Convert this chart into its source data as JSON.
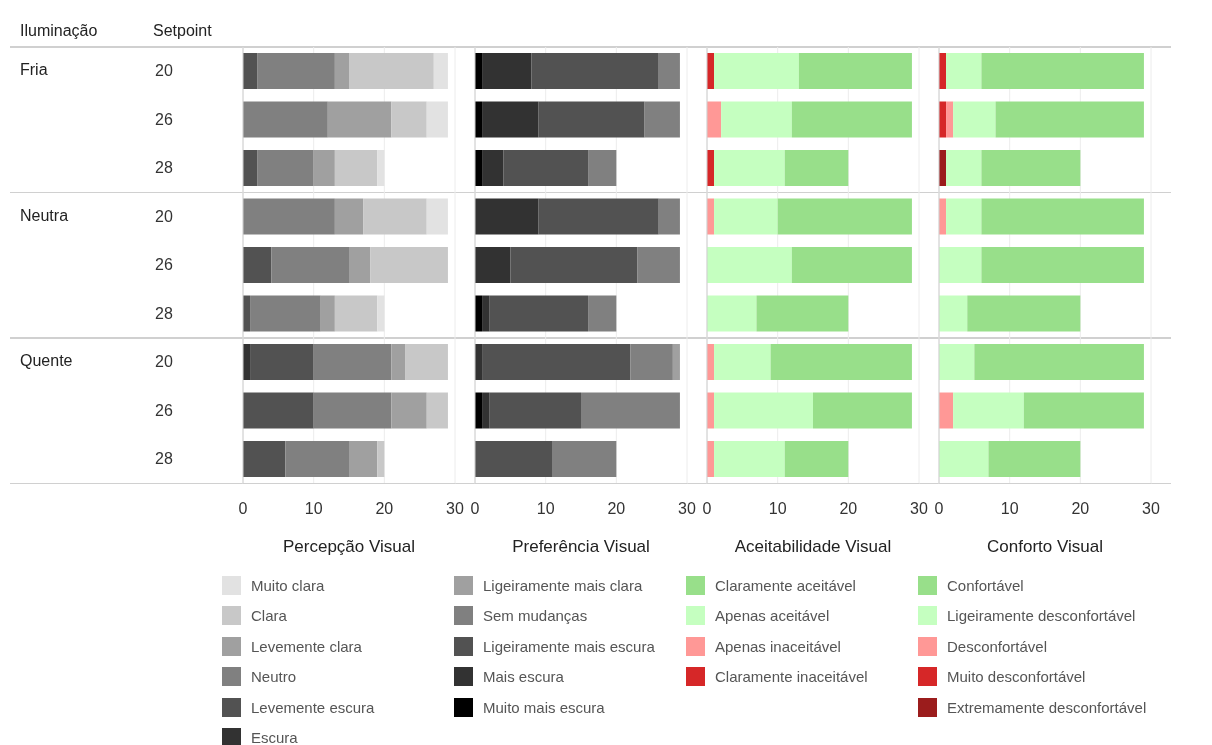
{
  "chart_data": [
    {
      "type": "bar",
      "orientation": "horizontal",
      "stacked": true,
      "xlabel": "Percepção Visual",
      "categories": [
        "20",
        "26",
        "28",
        "20",
        "26",
        "28",
        "20",
        "26",
        "28"
      ],
      "xlim": [
        0,
        30
      ],
      "xticks": [
        0,
        10,
        20,
        30
      ],
      "grid": "x",
      "legend": "bottom",
      "annotations": [
        "Iluminação",
        "Setpoint",
        "Fria",
        "Neutra",
        "Quente"
      ],
      "series": [
        {
          "name": "Escura",
          "color": "#323232",
          "values": [
            null,
            null,
            null,
            null,
            null,
            null,
            1,
            null,
            null
          ]
        },
        {
          "name": "Levemente escura",
          "color": "#525252",
          "values": [
            2,
            null,
            2,
            null,
            4,
            1,
            9,
            10,
            6
          ]
        },
        {
          "name": "Neutro",
          "color": "#808080",
          "values": [
            11,
            12,
            8,
            13,
            11,
            10,
            11,
            11,
            9
          ]
        },
        {
          "name": "Levemente clara",
          "color": "#a0a0a0",
          "values": [
            2,
            9,
            3,
            4,
            3,
            2,
            2,
            5,
            4
          ]
        },
        {
          "name": "Clara",
          "color": "#c8c8c8",
          "values": [
            12,
            5,
            6,
            9,
            11,
            6,
            6,
            3,
            1
          ]
        },
        {
          "name": "Muito clara",
          "color": "#e2e2e2",
          "values": [
            2,
            3,
            1,
            3,
            null,
            1,
            null,
            null,
            null
          ]
        }
      ]
    },
    {
      "type": "bar",
      "orientation": "horizontal",
      "stacked": true,
      "xlabel": "Preferência Visual",
      "categories": [
        "20",
        "26",
        "28",
        "20",
        "26",
        "28",
        "20",
        "26",
        "28"
      ],
      "xlim": [
        0,
        30
      ],
      "xticks": [
        0,
        10,
        20,
        30
      ],
      "grid": "x",
      "legend": "bottom",
      "tick_labels": "x",
      "series": [
        {
          "name": "Muito mais escura",
          "color": "#000000",
          "values": [
            1,
            1,
            1,
            null,
            null,
            1,
            null,
            1,
            null
          ]
        },
        {
          "name": "Mais escura",
          "color": "#323232",
          "values": [
            7,
            8,
            3,
            9,
            5,
            1,
            1,
            1,
            null
          ]
        },
        {
          "name": "Ligeiramente mais escura",
          "color": "#525252",
          "values": [
            18,
            15,
            12,
            17,
            18,
            14,
            21,
            13,
            11
          ]
        },
        {
          "name": "Sem mudanças",
          "color": "#808080",
          "values": [
            3,
            5,
            4,
            3,
            6,
            4,
            6,
            14,
            9
          ]
        },
        {
          "name": "Ligeiramente mais clara",
          "color": "#a0a0a0",
          "values": [
            null,
            null,
            null,
            null,
            null,
            null,
            1,
            null,
            null
          ]
        }
      ]
    },
    {
      "type": "bar",
      "orientation": "horizontal",
      "stacked": true,
      "xlabel": "Aceitabilidade Visual",
      "categories": [
        "20",
        "26",
        "28",
        "20",
        "26",
        "28",
        "20",
        "26",
        "28"
      ],
      "xlim": [
        0,
        30
      ],
      "xticks": [
        0,
        10,
        20,
        30
      ],
      "grid": "x",
      "legend": "bottom",
      "tick_labels": "x",
      "series": [
        {
          "name": "Claramente inaceitável",
          "color": "#d62728",
          "values": [
            1,
            null,
            1,
            null,
            null,
            null,
            null,
            null,
            null
          ]
        },
        {
          "name": "Apenas inaceitável",
          "color": "#ff9896",
          "values": [
            null,
            2,
            null,
            1,
            null,
            null,
            1,
            1,
            1
          ]
        },
        {
          "name": "Apenas aceitável",
          "color": "#c5ffc0",
          "values": [
            12,
            10,
            10,
            9,
            12,
            7,
            8,
            14,
            10
          ]
        },
        {
          "name": "Claramente aceitável",
          "color": "#98df8a",
          "values": [
            16,
            17,
            9,
            19,
            17,
            13,
            20,
            14,
            9
          ]
        }
      ]
    },
    {
      "type": "bar",
      "orientation": "horizontal",
      "stacked": true,
      "xlabel": "Conforto Visual",
      "categories": [
        "20",
        "26",
        "28",
        "20",
        "26",
        "28",
        "20",
        "26",
        "28"
      ],
      "xlim": [
        0,
        30
      ],
      "xticks": [
        0,
        10,
        20,
        30
      ],
      "grid": "x",
      "legend": "bottom",
      "tick_labels": "x",
      "series": [
        {
          "name": "Extremamente desconfortável",
          "color": "#9b1c1c",
          "values": [
            null,
            null,
            1,
            null,
            null,
            null,
            null,
            null,
            null
          ]
        },
        {
          "name": "Muito desconfortável",
          "color": "#d62728",
          "values": [
            1,
            1,
            null,
            null,
            null,
            null,
            null,
            null,
            null
          ]
        },
        {
          "name": "Desconfortável",
          "color": "#ff9896",
          "values": [
            null,
            1,
            null,
            1,
            null,
            null,
            null,
            2,
            null
          ]
        },
        {
          "name": "Ligeiramente desconfortável",
          "color": "#c5ffc0",
          "values": [
            5,
            6,
            5,
            5,
            6,
            4,
            5,
            10,
            7
          ]
        },
        {
          "name": "Confortável",
          "color": "#98df8a",
          "values": [
            23,
            21,
            14,
            23,
            23,
            16,
            24,
            17,
            13
          ]
        }
      ]
    }
  ]
}
